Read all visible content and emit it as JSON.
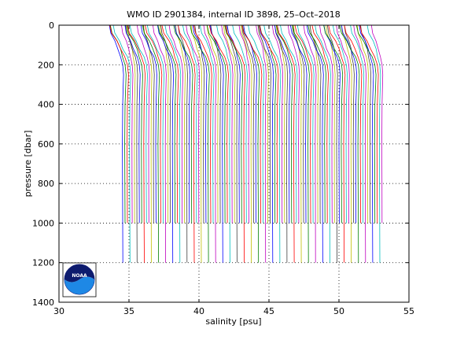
{
  "chart_data": {
    "type": "line",
    "title": "WMO ID 2901384, internal ID 3898, 25–Oct–2018",
    "xlabel": "salinity [psu]",
    "ylabel": "pressure [dbar]",
    "xlim": [
      30,
      55
    ],
    "ylim": [
      0,
      1400
    ],
    "y_reversed": true,
    "xticks": [
      "30",
      "35",
      "40",
      "45",
      "50",
      "55"
    ],
    "yticks": [
      "0",
      "200",
      "400",
      "600",
      "800",
      "1000",
      "1200",
      "1400"
    ],
    "grid": true,
    "grid_style": "dotted",
    "legend": "none",
    "profile_count": 110,
    "profile_offset_psu": 0.17,
    "first_profile_deep_salinity": 34.55,
    "max_pressure": 1200,
    "series_colors": [
      "#0000ff",
      "#008000",
      "#ff0000",
      "#00bfbf",
      "#bf00bf",
      "#bfbf00",
      "#404040"
    ],
    "profile_shape": {
      "pressure": [
        0,
        40,
        80,
        120,
        160,
        200,
        250,
        300,
        400,
        600,
        800,
        1000,
        1200
      ],
      "salinity_anomaly": [
        -0.95,
        -0.85,
        -0.55,
        -0.35,
        -0.15,
        0.0,
        0.06,
        0.04,
        0.0,
        -0.02,
        -0.01,
        0.0,
        0.01
      ]
    }
  },
  "logo": {
    "name": "NOAA",
    "text": "NOAA"
  }
}
